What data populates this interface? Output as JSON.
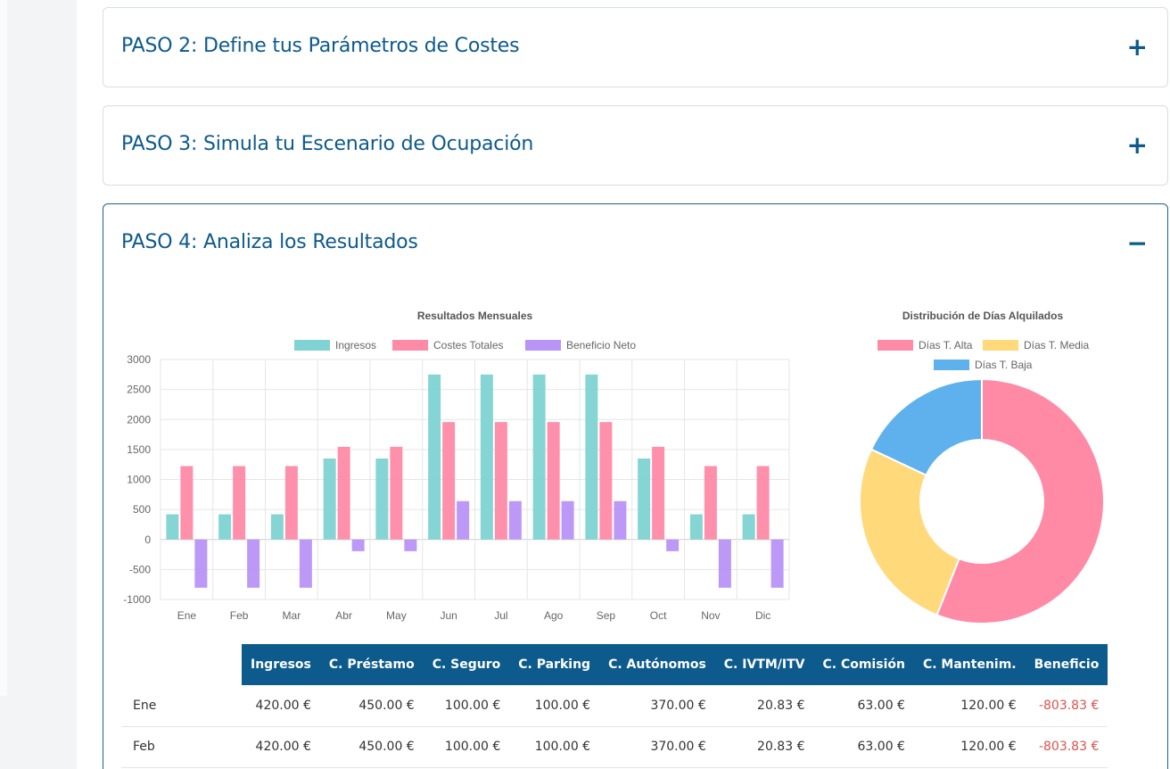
{
  "steps": [
    {
      "title": "PASO 2: Define tus Parámetros de Costes",
      "toggle": "+"
    },
    {
      "title": "PASO 3: Simula tu Escenario de Ocupación",
      "toggle": "+"
    },
    {
      "title": "PASO 4: Analiza los Resultados",
      "toggle": "−"
    }
  ],
  "chart_data": [
    {
      "type": "bar",
      "title": "Resultados Mensuales",
      "categories": [
        "Ene",
        "Feb",
        "Mar",
        "Abr",
        "May",
        "Jun",
        "Jul",
        "Ago",
        "Sep",
        "Oct",
        "Nov",
        "Dic"
      ],
      "series": [
        {
          "name": "Ingresos",
          "color": "#7fd3d3",
          "values": [
            420,
            420,
            420,
            1350,
            1350,
            2750,
            2750,
            2750,
            2750,
            1350,
            420,
            420
          ]
        },
        {
          "name": "Costes Totales",
          "color": "#ff8aa6",
          "values": [
            1223.83,
            1223.83,
            1223.83,
            1545,
            1545,
            1957,
            1957,
            1957,
            1957,
            1545,
            1223.83,
            1223.83
          ]
        },
        {
          "name": "Beneficio Neto",
          "color": "#b894f7",
          "values": [
            -803.83,
            -803.83,
            -803.83,
            -195,
            -195,
            640,
            640,
            640,
            640,
            -195,
            -803.83,
            -803.83
          ]
        }
      ],
      "ylim": [
        -1000,
        3000
      ],
      "yticks": [
        3000,
        2500,
        2000,
        1500,
        1000,
        500,
        0,
        -500,
        -1000
      ],
      "grid": true,
      "legend": "top"
    },
    {
      "type": "pie",
      "title": "Distribución de Días Alquilados",
      "labels": [
        "Días T. Alta",
        "Días T. Media",
        "Días T. Baja"
      ],
      "values": [
        56,
        26,
        18
      ],
      "colors": [
        "#ff8aa6",
        "#ffd97a",
        "#5fb1ee"
      ],
      "legend": "top"
    }
  ],
  "table": {
    "headers": [
      "",
      "Ingresos",
      "C. Préstamo",
      "C. Seguro",
      "C. Parking",
      "C. Autónomos",
      "C. IVTM/ITV",
      "C. Comisión",
      "C. Mantenim.",
      "Beneficio"
    ],
    "rows": [
      [
        "Ene",
        "420.00 €",
        "450.00 €",
        "100.00 €",
        "100.00 €",
        "370.00 €",
        "20.83 €",
        "63.00 €",
        "120.00 €",
        "-803.83 €"
      ],
      [
        "Feb",
        "420.00 €",
        "450.00 €",
        "100.00 €",
        "100.00 €",
        "370.00 €",
        "20.83 €",
        "63.00 €",
        "120.00 €",
        "-803.83 €"
      ]
    ]
  }
}
